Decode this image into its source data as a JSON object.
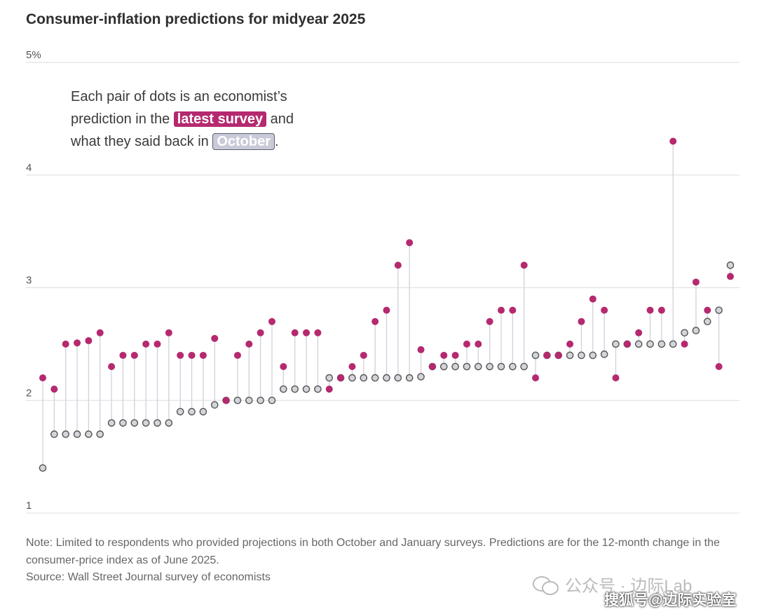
{
  "title": "Consumer-inflation predictions for midyear 2025",
  "annotation": {
    "line1": "Each pair of dots is an economist’s",
    "line2_pre": "prediction in the ",
    "latest_label": "latest survey",
    "line2_post": " and",
    "line3_pre": "what they said back in ",
    "october_label": "October",
    "line3_post": "."
  },
  "note": "Note: Limited to respondents who provided projections in both October and January surveys. Predictions are for the 12-month change in the consumer-price index as of June 2025.",
  "source": "Source: Wall Street Journal survey of economists",
  "watermark": {
    "line1": "公众号 · 边际Lab",
    "line2": "搜狐号@边际实验室"
  },
  "colors": {
    "latest": "#b5296f",
    "october": "#d3d5da",
    "stem": "#cfd2dc"
  },
  "chart_data": {
    "type": "scatter",
    "subtype": "dumbbell",
    "title": "Consumer-inflation predictions for midyear 2025",
    "ylim": [
      1,
      5
    ],
    "yticks": [
      1,
      2,
      3,
      4,
      5
    ],
    "ytick_labels": [
      "1",
      "2",
      "3",
      "4",
      "5%"
    ],
    "grid": true,
    "series": [
      {
        "name": "latest survey",
        "values": [
          2.2,
          2.1,
          2.5,
          2.51,
          2.53,
          2.6,
          2.3,
          2.4,
          2.4,
          2.5,
          2.5,
          2.6,
          2.4,
          2.4,
          2.4,
          2.55,
          2.0,
          2.4,
          2.5,
          2.6,
          2.7,
          2.3,
          2.6,
          2.6,
          2.6,
          2.1,
          2.2,
          2.3,
          2.4,
          2.7,
          2.8,
          3.2,
          3.4,
          2.45,
          2.3,
          2.4,
          2.4,
          2.5,
          2.5,
          2.7,
          2.8,
          2.8,
          3.2,
          2.2,
          2.4,
          2.4,
          2.5,
          2.7,
          2.9,
          2.8,
          2.2,
          2.5,
          2.6,
          2.8,
          2.8,
          4.3,
          2.5,
          3.05,
          2.8,
          2.3,
          3.1
        ]
      },
      {
        "name": "October",
        "values": [
          1.4,
          1.7,
          1.7,
          1.7,
          1.7,
          1.7,
          1.8,
          1.8,
          1.8,
          1.8,
          1.8,
          1.8,
          1.9,
          1.9,
          1.9,
          1.96,
          2.0,
          2.0,
          2.0,
          2.0,
          2.0,
          2.1,
          2.1,
          2.1,
          2.1,
          2.2,
          2.2,
          2.2,
          2.2,
          2.2,
          2.2,
          2.2,
          2.2,
          2.21,
          2.3,
          2.3,
          2.3,
          2.3,
          2.3,
          2.3,
          2.3,
          2.3,
          2.3,
          2.4,
          2.4,
          2.4,
          2.4,
          2.4,
          2.4,
          2.41,
          2.5,
          2.5,
          2.5,
          2.5,
          2.5,
          2.5,
          2.6,
          2.62,
          2.7,
          2.8,
          3.2
        ]
      }
    ]
  }
}
